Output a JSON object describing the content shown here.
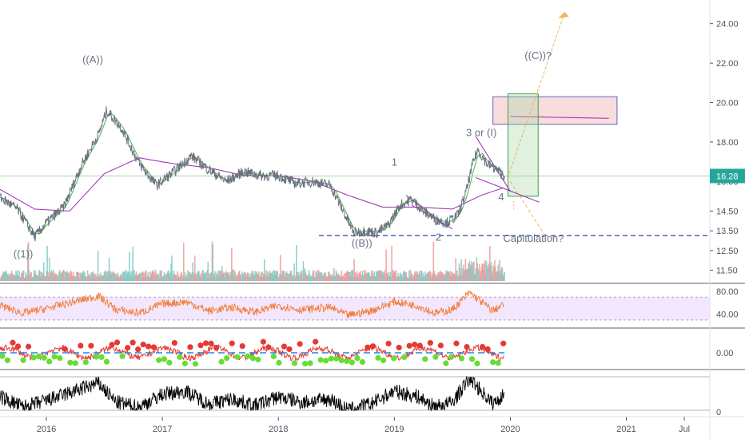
{
  "chart_data": {
    "type": "line",
    "price_panel": {
      "ylim": [
        11.2,
        25.2
      ],
      "y_ticks": [
        "24.00",
        "22.00",
        "20.00",
        "18.00",
        "16.00",
        "14.50",
        "13.50",
        "12.50",
        "11.50"
      ],
      "last_price": "16.28",
      "last_price_value": 16.28,
      "support_level": 13.25,
      "series_points": [
        [
          2015.6,
          15.2
        ],
        [
          2015.75,
          14.6
        ],
        [
          2015.9,
          13.2
        ],
        [
          2016.0,
          13.9
        ],
        [
          2016.15,
          14.7
        ],
        [
          2016.3,
          16.8
        ],
        [
          2016.45,
          18.4
        ],
        [
          2016.52,
          19.6
        ],
        [
          2016.65,
          18.7
        ],
        [
          2016.8,
          16.9
        ],
        [
          2016.95,
          15.8
        ],
        [
          2017.1,
          16.5
        ],
        [
          2017.25,
          17.3
        ],
        [
          2017.4,
          16.6
        ],
        [
          2017.55,
          16.0
        ],
        [
          2017.7,
          16.5
        ],
        [
          2017.85,
          16.3
        ],
        [
          2018.0,
          16.3
        ],
        [
          2018.15,
          15.9
        ],
        [
          2018.3,
          16.0
        ],
        [
          2018.45,
          15.8
        ],
        [
          2018.55,
          14.6
        ],
        [
          2018.65,
          13.4
        ],
        [
          2018.75,
          13.5
        ],
        [
          2018.85,
          13.4
        ],
        [
          2018.95,
          13.8
        ],
        [
          2019.05,
          14.8
        ],
        [
          2019.15,
          15.1
        ],
        [
          2019.25,
          14.5
        ],
        [
          2019.35,
          14.1
        ],
        [
          2019.45,
          13.9
        ],
        [
          2019.55,
          14.3
        ],
        [
          2019.62,
          15.5
        ],
        [
          2019.68,
          17.0
        ],
        [
          2019.72,
          17.6
        ],
        [
          2019.8,
          16.9
        ],
        [
          2019.88,
          16.6
        ],
        [
          2019.95,
          16.28
        ]
      ],
      "moving_average_points": [
        [
          2015.6,
          15.6
        ],
        [
          2015.9,
          14.6
        ],
        [
          2016.2,
          14.5
        ],
        [
          2016.5,
          16.4
        ],
        [
          2016.8,
          17.2
        ],
        [
          2017.1,
          16.9
        ],
        [
          2017.4,
          16.7
        ],
        [
          2017.7,
          16.3
        ],
        [
          2018.0,
          16.3
        ],
        [
          2018.3,
          16.0
        ],
        [
          2018.6,
          15.3
        ],
        [
          2018.9,
          14.7
        ],
        [
          2019.2,
          14.7
        ],
        [
          2019.5,
          14.6
        ],
        [
          2019.75,
          15.3
        ],
        [
          2019.95,
          15.7
        ]
      ]
    },
    "annotations": [
      {
        "text": "((A))",
        "x": 2016.4,
        "y": 22.0
      },
      {
        "text": "((1))",
        "x": 2015.8,
        "y": 12.15
      },
      {
        "text": "((B))",
        "x": 2018.72,
        "y": 12.7
      },
      {
        "text": "1",
        "x": 2019.0,
        "y": 16.8
      },
      {
        "text": "2",
        "x": 2019.38,
        "y": 13.0
      },
      {
        "text": "3 or (I)",
        "x": 2019.75,
        "y": 18.3
      },
      {
        "text": "4",
        "x": 2019.92,
        "y": 15.05
      },
      {
        "text": "((C))?",
        "x": 2020.24,
        "y": 22.2
      },
      {
        "text": "Capitulation?",
        "x": 2020.2,
        "y": 12.95
      }
    ],
    "rsi_panel": {
      "y_ticks": [
        "80.00",
        "40.00"
      ],
      "band": [
        30,
        70
      ],
      "series_points": [
        [
          2015.6,
          55
        ],
        [
          2015.8,
          42
        ],
        [
          2016.0,
          50
        ],
        [
          2016.2,
          60
        ],
        [
          2016.45,
          72
        ],
        [
          2016.6,
          48
        ],
        [
          2016.8,
          42
        ],
        [
          2017.0,
          58
        ],
        [
          2017.2,
          62
        ],
        [
          2017.4,
          46
        ],
        [
          2017.6,
          52
        ],
        [
          2017.8,
          44
        ],
        [
          2018.0,
          55
        ],
        [
          2018.2,
          48
        ],
        [
          2018.45,
          52
        ],
        [
          2018.6,
          38
        ],
        [
          2018.8,
          46
        ],
        [
          2019.0,
          62
        ],
        [
          2019.2,
          55
        ],
        [
          2019.35,
          42
        ],
        [
          2019.5,
          48
        ],
        [
          2019.65,
          78
        ],
        [
          2019.75,
          62
        ],
        [
          2019.85,
          46
        ],
        [
          2019.95,
          58
        ]
      ]
    },
    "momentum_panel": {
      "y_ticks": [
        "0.00"
      ]
    },
    "oscillator_panel": {
      "y_ticks": [
        "0"
      ]
    },
    "x_ticks": [
      "2016",
      "2017",
      "2018",
      "2019",
      "2020",
      "2021",
      "Jul"
    ],
    "x_tick_values": [
      2016.0,
      2017.0,
      2018.0,
      2019.0,
      2020.0,
      2021.0,
      2021.5
    ],
    "xlim": [
      2015.6,
      2021.72
    ],
    "colors": {
      "price_line": "#6b7280",
      "moving_average": "#9c27b0",
      "fast_ma": "#4caf50",
      "support": "#3f51b5",
      "projection": "#f0b35c",
      "target_box": "#ef9a9a",
      "long_box": "#a5d6a7",
      "last_price_label": "#26a69a",
      "rsi": "#f57c38",
      "rsi_band": "#e9d7fb",
      "volume_up": "#80cbc4",
      "volume_down": "#ef9a9a",
      "oscillator": "#000000"
    }
  }
}
